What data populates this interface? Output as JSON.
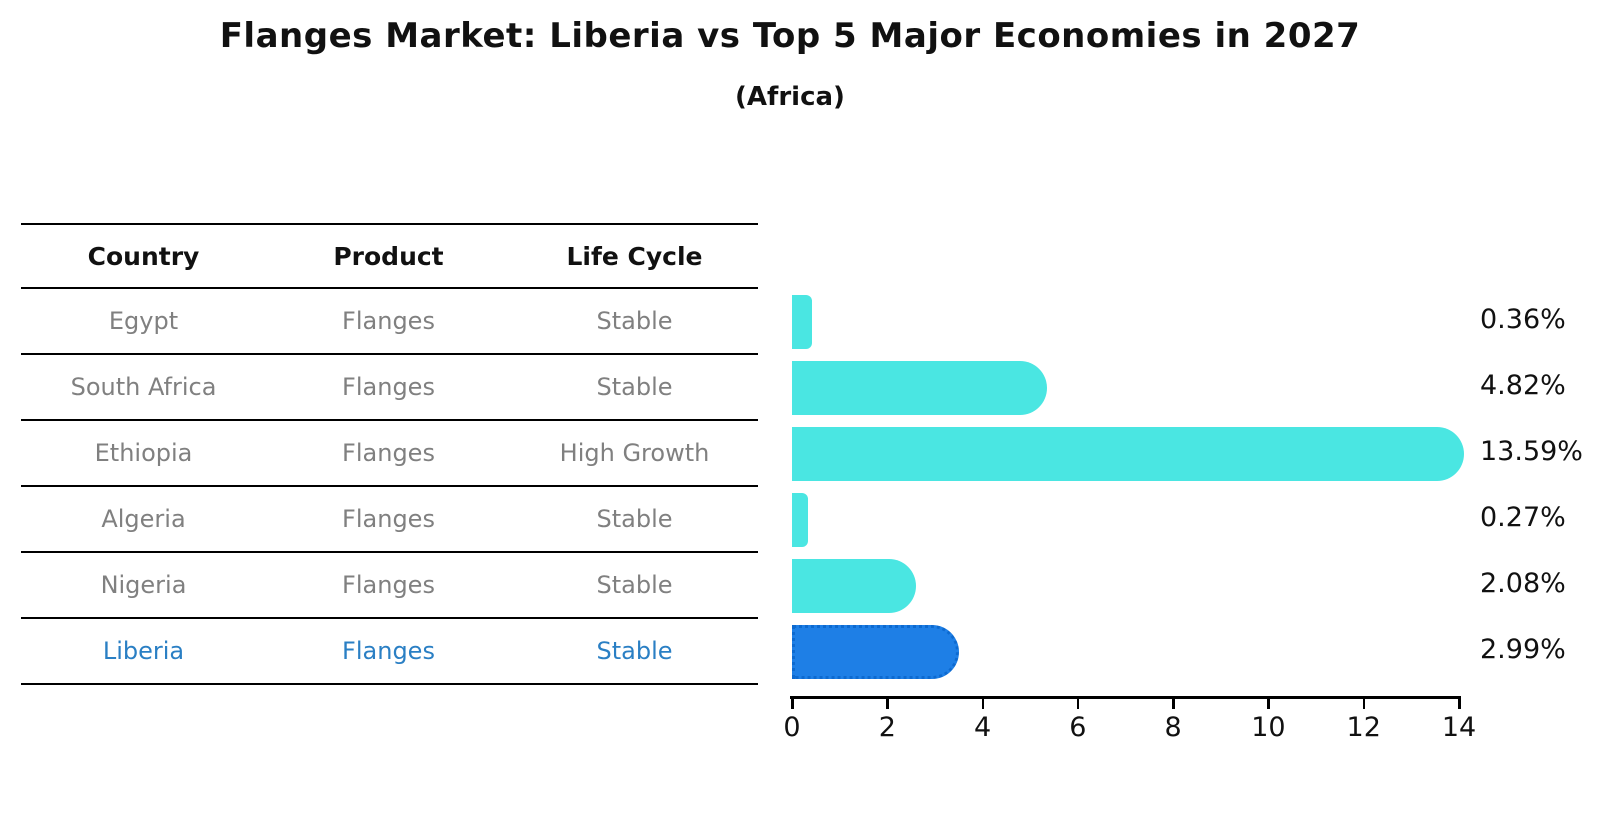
{
  "title": "Flanges Market: Liberia vs Top 5 Major Economies in 2027",
  "subtitle": "(Africa)",
  "table": {
    "headers": [
      "Country",
      "Product",
      "Life Cycle"
    ],
    "rows": [
      {
        "country": "Egypt",
        "product": "Flanges",
        "life_cycle": "Stable",
        "highlight": false
      },
      {
        "country": "South Africa",
        "product": "Flanges",
        "life_cycle": "Stable",
        "highlight": false
      },
      {
        "country": "Ethiopia",
        "product": "Flanges",
        "life_cycle": "High Growth",
        "highlight": false
      },
      {
        "country": "Algeria",
        "product": "Flanges",
        "life_cycle": "Stable",
        "highlight": false
      },
      {
        "country": "Nigeria",
        "product": "Flanges",
        "life_cycle": "Stable",
        "highlight": false
      },
      {
        "country": "Liberia",
        "product": "Flanges",
        "life_cycle": "Stable",
        "highlight": true
      }
    ]
  },
  "chart_data": {
    "type": "bar",
    "orientation": "horizontal",
    "title": "Flanges Market: Liberia vs Top 5 Major Economies in 2027",
    "subtitle": "(Africa)",
    "categories": [
      "Egypt",
      "South Africa",
      "Ethiopia",
      "Algeria",
      "Nigeria",
      "Liberia"
    ],
    "values": [
      0.36,
      4.82,
      13.59,
      0.27,
      2.08,
      2.99
    ],
    "value_labels": [
      "0.36%",
      "4.82%",
      "13.59%",
      "0.27%",
      "2.08%",
      "2.99%"
    ],
    "xlabel": "",
    "ylabel": "",
    "xlim": [
      0,
      14
    ],
    "x_ticks": [
      0,
      2,
      4,
      6,
      8,
      10,
      12,
      14
    ],
    "grid": false,
    "legend": false,
    "highlight_index": 5
  },
  "colors": {
    "bar_default": "#4AE6E2",
    "bar_highlight": "#1E7FE6",
    "bar_highlight_border": "#0d6ad0",
    "highlight_text": "#2A7FC4",
    "table_text": "#808080",
    "header_text": "#111111",
    "line": "#000000",
    "background": "#ffffff"
  }
}
